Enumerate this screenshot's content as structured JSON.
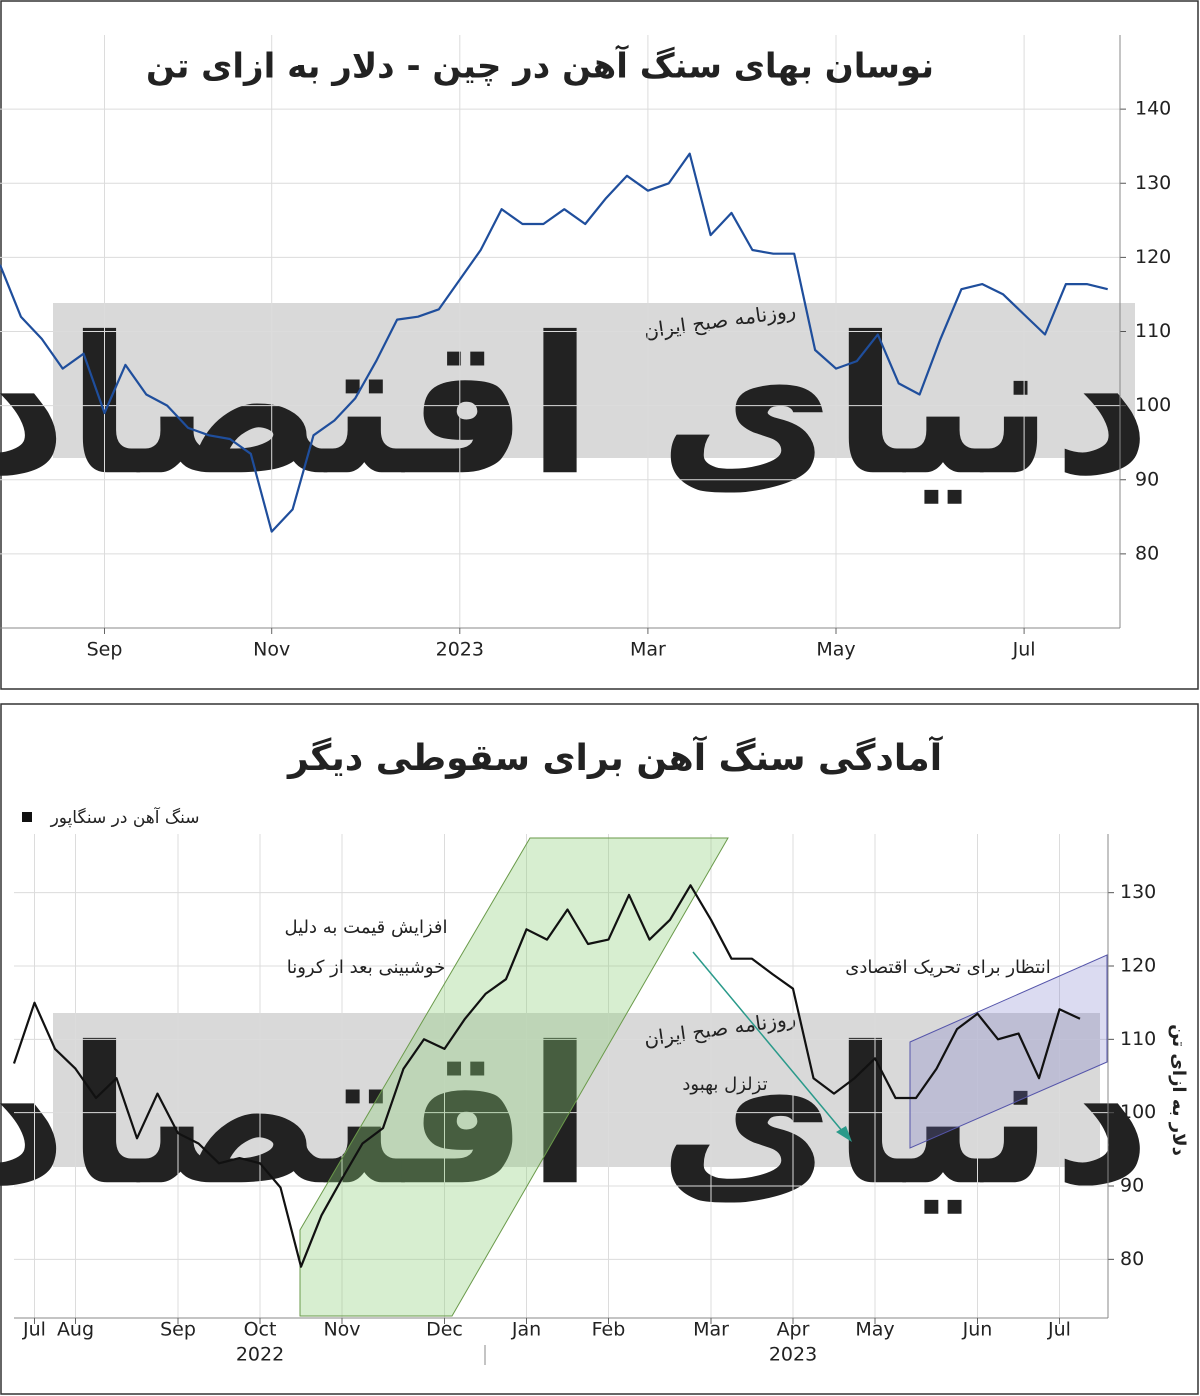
{
  "watermark": {
    "brand": "دنیای اقتصاد",
    "tagline": "روزنامه صبح ایران"
  },
  "chart_data": [
    {
      "type": "line",
      "title": "نوسان بهای سنگ آهن در چین - دلار به ازای تن",
      "categories": [
        null,
        null,
        null,
        null,
        null,
        "Sep",
        null,
        null,
        null,
        null,
        null,
        null,
        null,
        "Nov",
        null,
        null,
        null,
        null,
        null,
        null,
        null,
        null,
        "2023",
        null,
        null,
        null,
        null,
        null,
        null,
        null,
        null,
        "Mar",
        null,
        null,
        null,
        null,
        null,
        null,
        null,
        null,
        "May",
        null,
        null,
        null,
        null,
        null,
        null,
        null,
        null,
        "Jul",
        null,
        null,
        null,
        null
      ],
      "series": [
        {
          "color": "#1f4e9c",
          "values": [
            119,
            112,
            109,
            105,
            107,
            99,
            105.5,
            101.5,
            100,
            97,
            96,
            95.5,
            93.5,
            83,
            86,
            96,
            98,
            101,
            106,
            111.6,
            112,
            113,
            117,
            121,
            126.5,
            124.5,
            124.5,
            126.5,
            124.5,
            128,
            131,
            129,
            130,
            134,
            123,
            126,
            121,
            120.5,
            120.5,
            107.5,
            105,
            106,
            109.6,
            103,
            101.5,
            109,
            115.7,
            116.4,
            115,
            112.3,
            109.6,
            116.4,
            116.4,
            115.7
          ]
        }
      ],
      "ylim": [
        70,
        150
      ],
      "yticks": [
        80,
        90,
        100,
        110,
        120,
        130,
        140
      ],
      "grid": true,
      "y_axis_side": "right"
    },
    {
      "type": "line",
      "title": "آمادگی سنگ آهن برای سقوطی دیگر",
      "categories": [
        null,
        "Jul",
        null,
        "Aug",
        null,
        null,
        null,
        null,
        "Sep",
        null,
        null,
        null,
        "Oct",
        null,
        null,
        null,
        "Nov",
        null,
        null,
        null,
        null,
        "Dec",
        null,
        null,
        null,
        "Jan",
        null,
        null,
        null,
        "Feb",
        null,
        null,
        null,
        null,
        "Mar",
        null,
        null,
        null,
        "Apr",
        null,
        null,
        null,
        "May",
        null,
        null,
        null,
        null,
        "Jun",
        null,
        null,
        null,
        "Jul",
        null
      ],
      "category_years": [
        null,
        null,
        null,
        null,
        null,
        null,
        null,
        null,
        null,
        null,
        null,
        null,
        "2022",
        null,
        null,
        null,
        null,
        null,
        null,
        null,
        null,
        null,
        null,
        null,
        null,
        null,
        null,
        null,
        null,
        null,
        null,
        null,
        null,
        null,
        null,
        null,
        null,
        null,
        "2023",
        null,
        null,
        null,
        null,
        null,
        null,
        null,
        null,
        null,
        null,
        null,
        null,
        null,
        null
      ],
      "series": [
        {
          "name": "سنگ آهن در سنگاپور",
          "color": "#111111",
          "values": [
            106.7,
            115,
            108.7,
            106,
            102,
            104.7,
            96.5,
            102.6,
            97.2,
            95.8,
            93.1,
            93.8,
            93.1,
            89.8,
            79,
            86,
            91,
            95.8,
            97.9,
            106,
            110,
            108.7,
            112.8,
            116.2,
            118.2,
            125,
            123.6,
            127.7,
            123,
            123.6,
            129.7,
            123.6,
            126.3,
            131,
            126.3,
            121,
            121,
            118.9,
            116.9,
            104.7,
            102.6,
            104.7,
            107.4,
            102,
            102,
            106,
            111.4,
            113.5,
            110,
            110.8,
            104.7,
            114.1,
            112.8
          ]
        }
      ],
      "ylabel": "دلار به ازای تن",
      "ylim": [
        72,
        138
      ],
      "yticks": [
        80,
        90,
        100,
        110,
        120,
        130
      ],
      "grid": true,
      "y_axis_side": "right",
      "annotations": [
        "افزایش قیمت به دلیل",
        "خوشبینی بعد از کرونا",
        "تزلزل بهبود",
        "انتظار برای تحریک اقتصادی"
      ]
    }
  ]
}
